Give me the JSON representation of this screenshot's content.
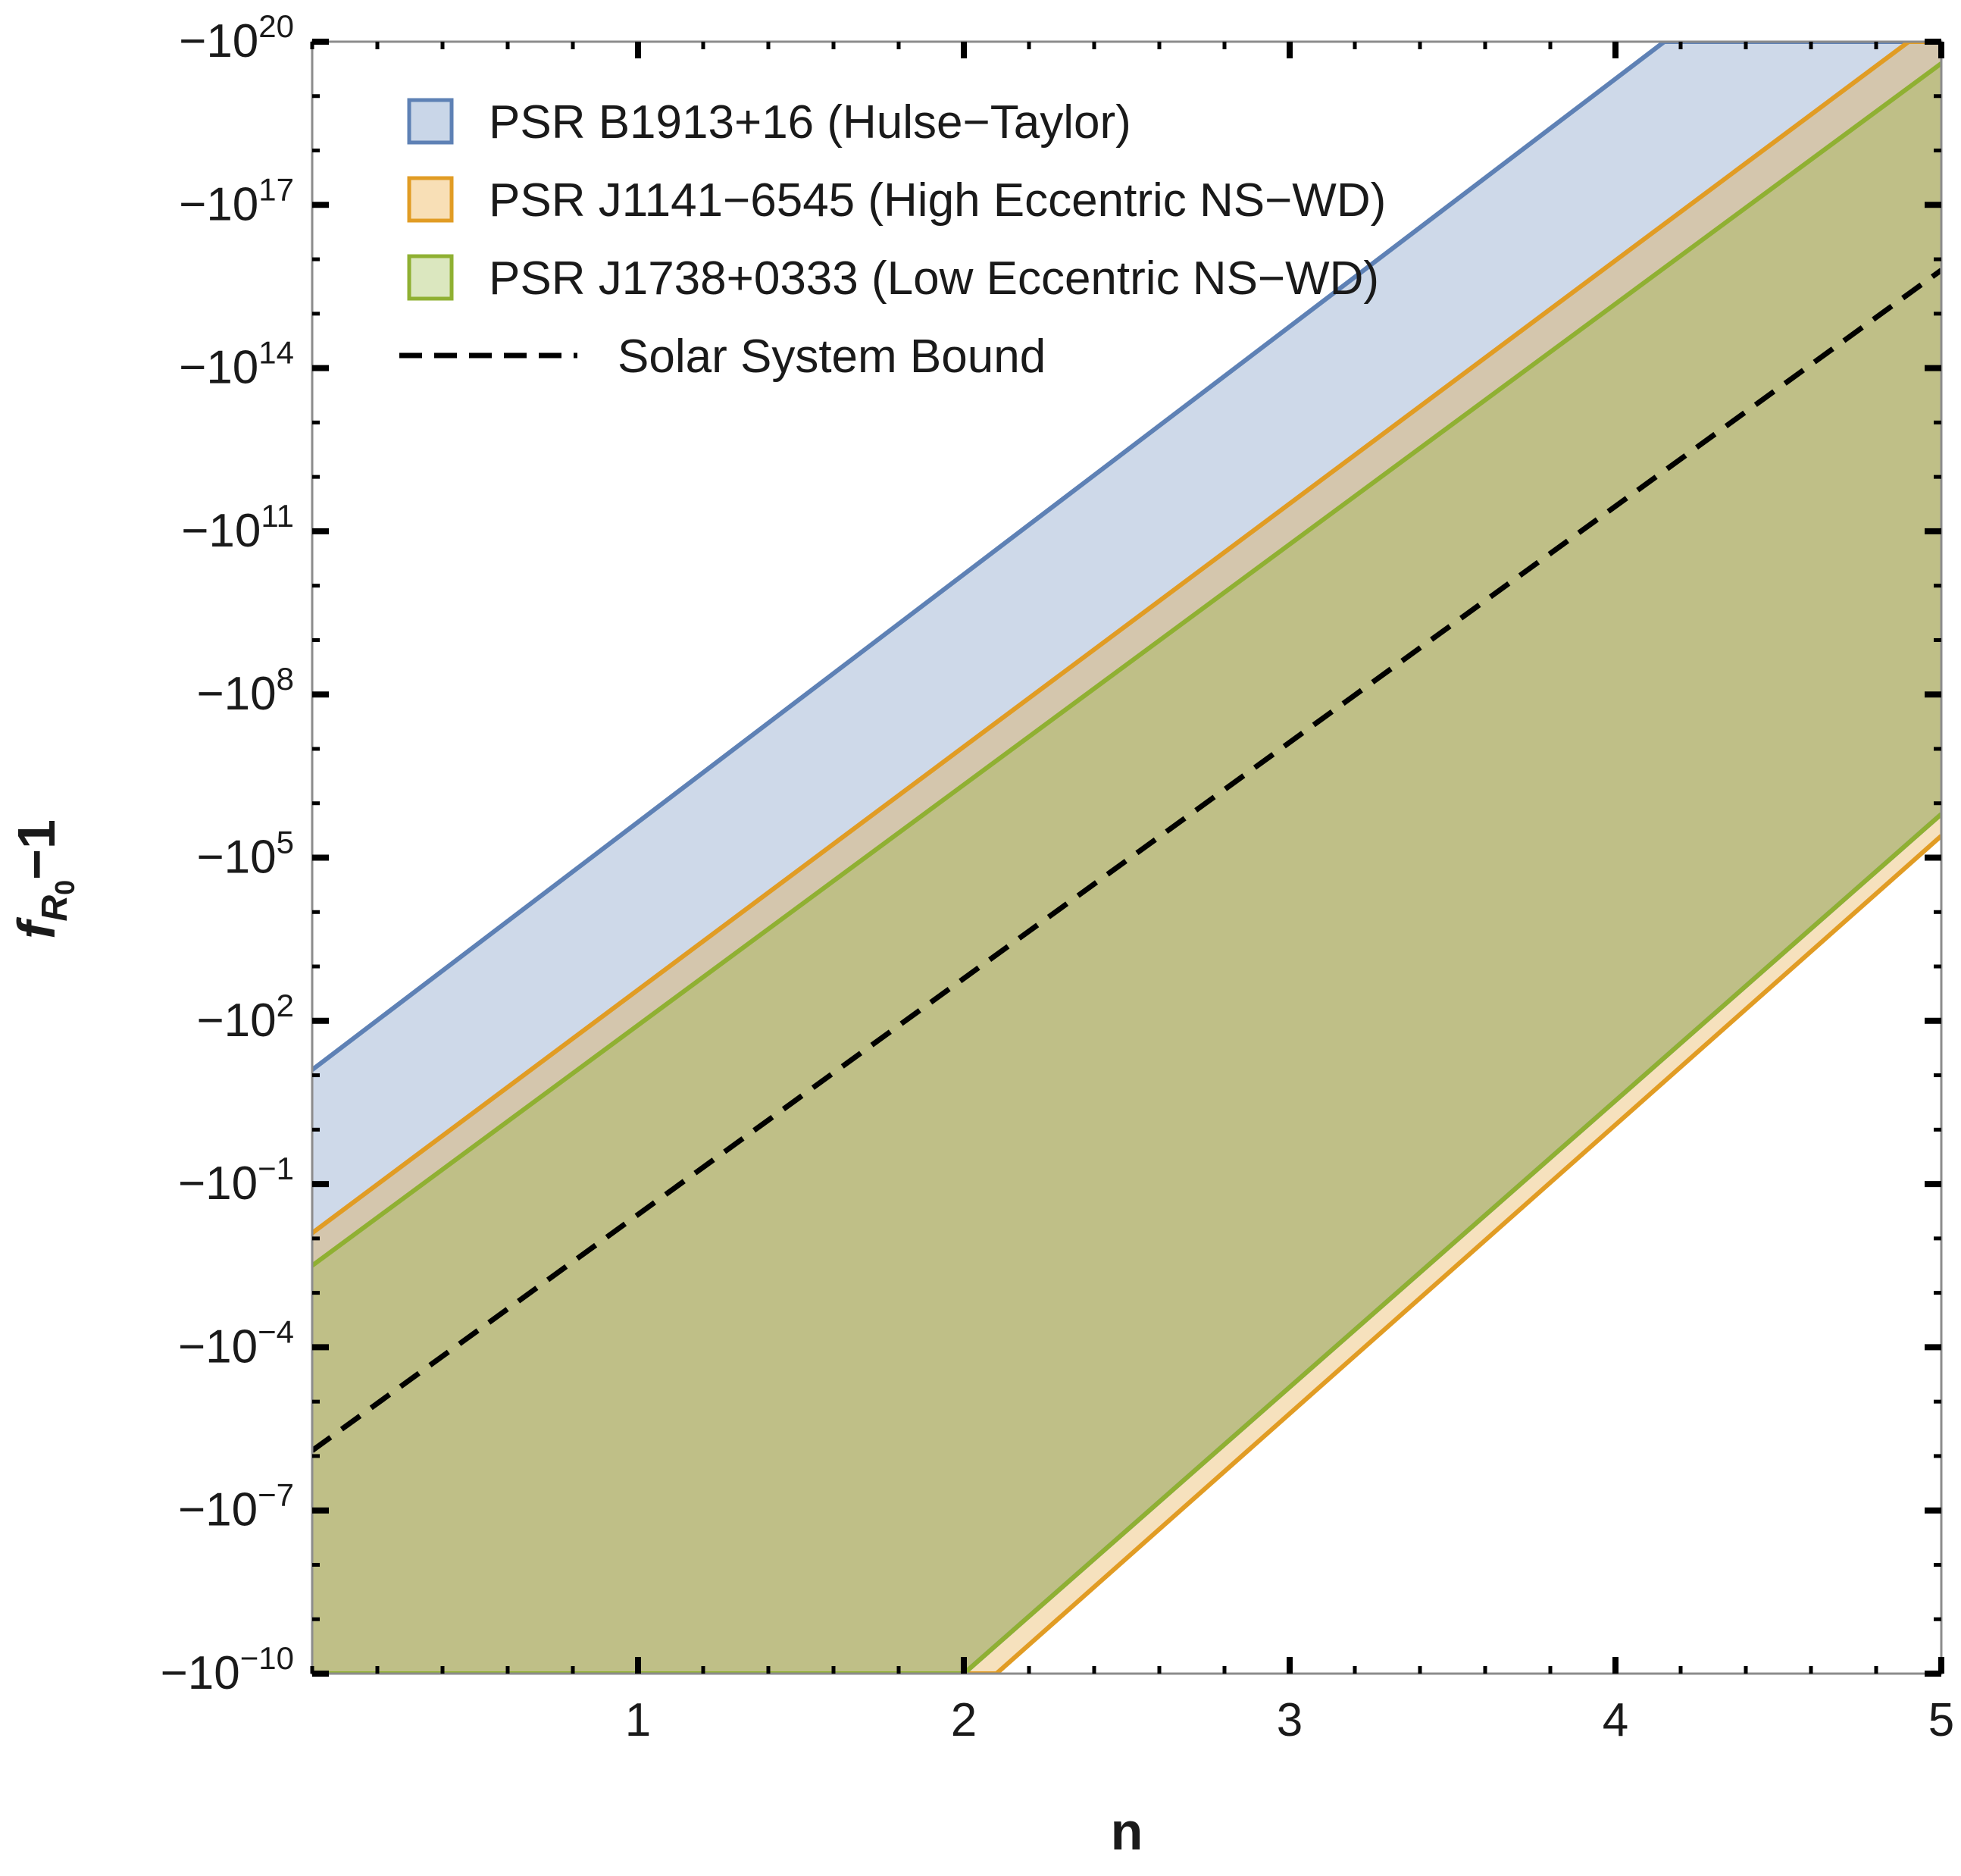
{
  "chart_data": {
    "type": "area",
    "xlabel": "n",
    "ylabel": {
      "base": "f",
      "sub": "R",
      "subsub": "0",
      "rest": "−1"
    },
    "xlim": [
      0,
      5
    ],
    "ylim_log10_magnitude": [
      -10,
      20
    ],
    "y_scale": "negative-log",
    "x_ticks": [
      {
        "value": 1,
        "label": "1"
      },
      {
        "value": 2,
        "label": "2"
      },
      {
        "value": 3,
        "label": "3"
      },
      {
        "value": 4,
        "label": "4"
      },
      {
        "value": 5,
        "label": "5"
      }
    ],
    "y_ticks": [
      {
        "exp": 20,
        "base": "−10",
        "sup": "20"
      },
      {
        "exp": 17,
        "base": "−10",
        "sup": "17"
      },
      {
        "exp": 14,
        "base": "−10",
        "sup": "14"
      },
      {
        "exp": 11,
        "base": "−10",
        "sup": "11"
      },
      {
        "exp": 8,
        "base": "−10",
        "sup": "8"
      },
      {
        "exp": 5,
        "base": "−10",
        "sup": "5"
      },
      {
        "exp": 2,
        "base": "−10",
        "sup": "2"
      },
      {
        "exp": -1,
        "base": "−10",
        "sup": "−1"
      },
      {
        "exp": -4,
        "base": "−10",
        "sup": "−4"
      },
      {
        "exp": -7,
        "base": "−10",
        "sup": "−7"
      },
      {
        "exp": -10,
        "base": "−10",
        "sup": "−10"
      }
    ],
    "grid": false,
    "legend_position": "top-left",
    "series": [
      {
        "name": "PSR B1913+16 (Hulse−Taylor)",
        "color": "#5e81b5",
        "fill": "#c9d6e8",
        "upper": [
          [
            0,
            1.1
          ],
          [
            4.15,
            20
          ],
          [
            5,
            20
          ]
        ],
        "lower": [
          [
            0,
            -10
          ],
          [
            2,
            -10
          ],
          [
            5,
            5.8
          ]
        ]
      },
      {
        "name": "PSR J1141−6545 (High Eccentric NS−WD)",
        "color": "#e19c24",
        "fill": "#f8dfb6",
        "upper": [
          [
            0,
            -1.9
          ],
          [
            4.9,
            20
          ],
          [
            5,
            20
          ]
        ],
        "lower": [
          [
            0,
            -10
          ],
          [
            2.1,
            -10
          ],
          [
            5,
            5.4
          ]
        ]
      },
      {
        "name": "PSR J1738+0333 (Low Eccentric NS−WD)",
        "color": "#8fb032",
        "fill": "#dbe7bf",
        "upper": [
          [
            0,
            -2.5
          ],
          [
            5,
            19.6
          ]
        ],
        "lower": [
          [
            0,
            -10
          ],
          [
            2,
            -10
          ],
          [
            5,
            5.8
          ]
        ]
      }
    ],
    "overlap_fill": "#bdbe88",
    "reference_lines": [
      {
        "name": "Solar System Bound",
        "style": "dashed",
        "color": "#000000",
        "points": [
          [
            0,
            -5.9
          ],
          [
            5,
            15.8
          ]
        ]
      }
    ]
  }
}
